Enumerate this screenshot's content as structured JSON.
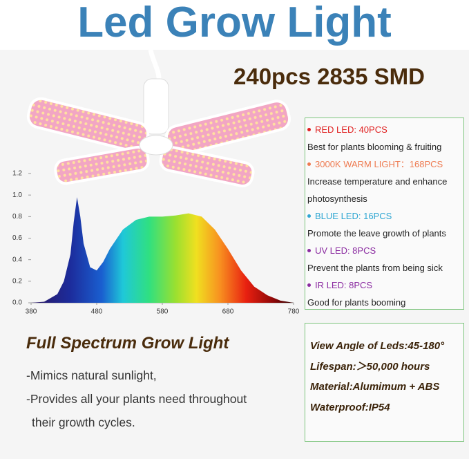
{
  "header": {
    "title": "Led Grow Light",
    "subtitle": "240pcs 2835 SMD"
  },
  "chart_data": {
    "type": "area",
    "x": [
      380,
      400,
      420,
      430,
      440,
      445,
      450,
      455,
      460,
      470,
      480,
      490,
      500,
      520,
      540,
      560,
      580,
      600,
      620,
      640,
      660,
      680,
      700,
      720,
      740,
      760,
      780
    ],
    "values": [
      0,
      0.01,
      0.08,
      0.2,
      0.45,
      0.75,
      0.98,
      0.8,
      0.55,
      0.33,
      0.3,
      0.38,
      0.5,
      0.68,
      0.77,
      0.8,
      0.8,
      0.81,
      0.83,
      0.8,
      0.68,
      0.5,
      0.3,
      0.15,
      0.07,
      0.02,
      0
    ],
    "xlim": [
      380,
      780
    ],
    "ylim": [
      0,
      1.2
    ],
    "xticks": [
      380,
      480,
      580,
      680,
      780
    ],
    "yticks": [
      {
        "value": 0,
        "label": "0.0"
      },
      0.2,
      0.4,
      0.6,
      0.8,
      {
        "value": 1,
        "label": "1.0"
      },
      1.2
    ]
  },
  "features": [
    {
      "label": "RED LED: 40PCS",
      "color": "#e02020",
      "text": "Best for plants blooming & fruiting"
    },
    {
      "label": "3000K WARM LIGHT：168PCS",
      "color": "#ee7a50",
      "text": "Increase temperature and enhance photosynthesis"
    },
    {
      "label": "BLUE LED: 16PCS",
      "color": "#2ea6d2",
      "text": "Promote the leave growth of plants"
    },
    {
      "label": "UV LED: 8PCS",
      "color": "#8a2aa0",
      "text": "Prevent the plants from being sick"
    },
    {
      "label": "IR LED: 8PCS",
      "color": "#8a2aa0",
      "text": "Good for plants booming"
    }
  ],
  "spectrum": {
    "title": "Full Spectrum Grow Light",
    "lines": [
      "-Mimics natural sunlight,",
      "-Provides all your plants need throughout",
      "their growth cycles."
    ]
  },
  "specs": [
    "View Angle of Leds:45-180°",
    "Lifespan:＞50,000 hours",
    "Material:Alumimum + ABS",
    "Waterproof:IP54"
  ]
}
